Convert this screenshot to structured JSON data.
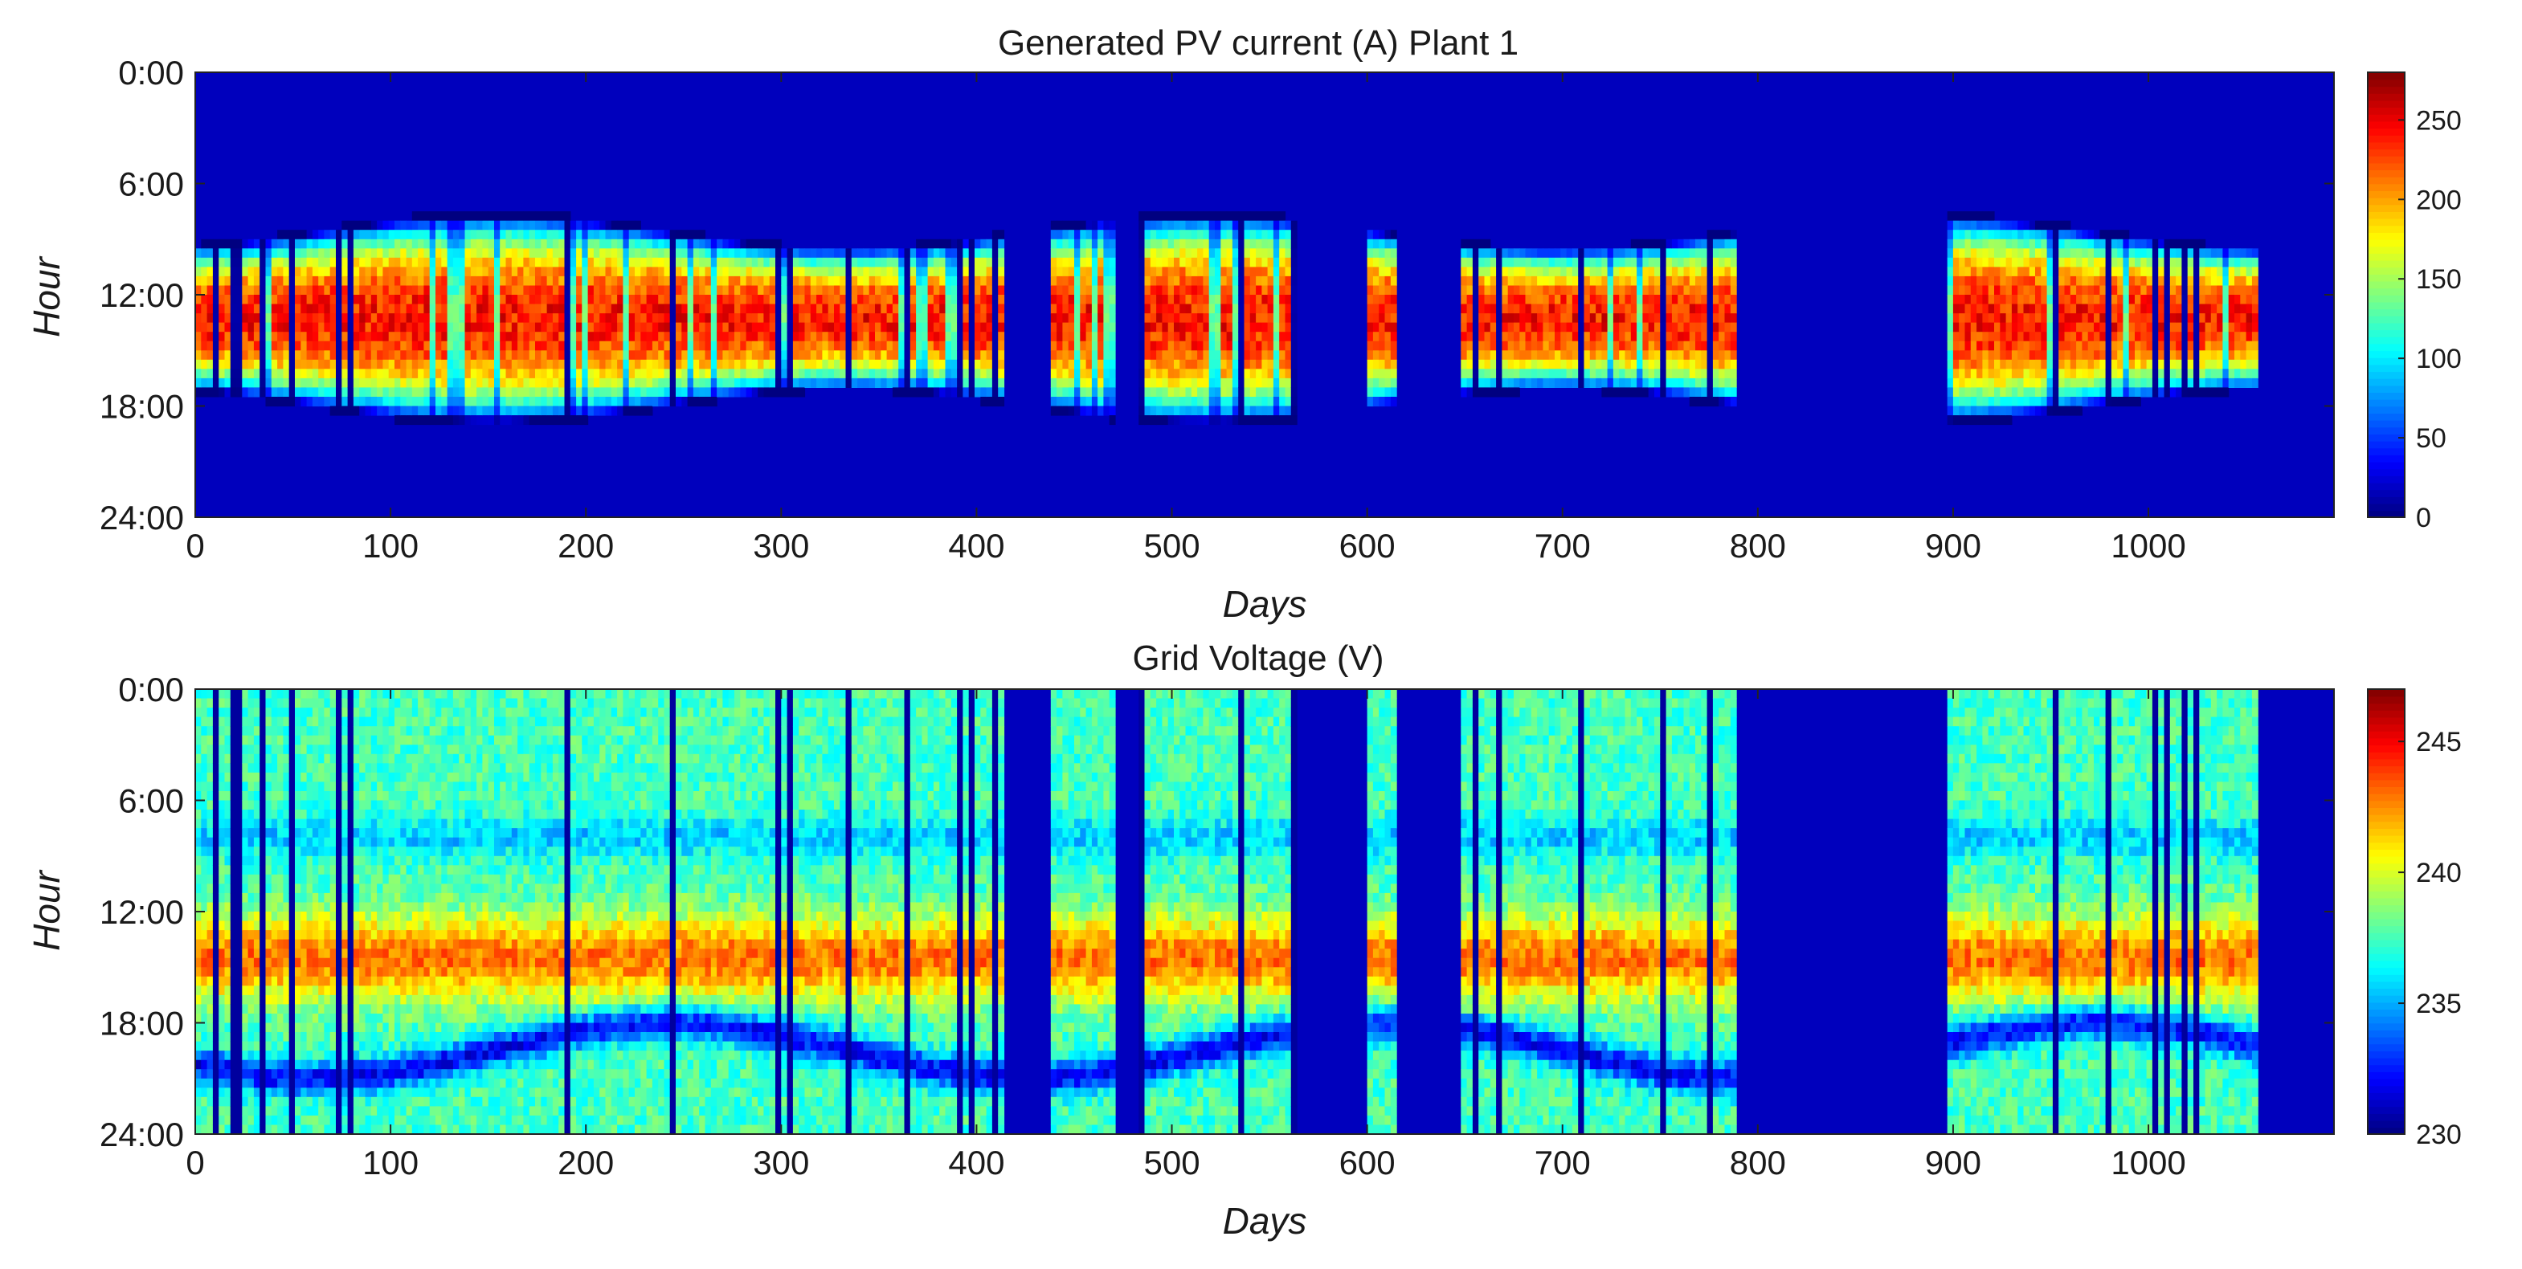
{
  "chart_data": [
    {
      "type": "heatmap",
      "title": "Generated PV current (A) Plant 1",
      "xlabel": "Days",
      "ylabel": "Hour",
      "xlim": [
        0,
        1095
      ],
      "x_ticks": [
        0,
        100,
        200,
        300,
        400,
        500,
        600,
        700,
        800,
        900,
        1000
      ],
      "y_ticks": [
        "0:00",
        "6:00",
        "12:00",
        "18:00",
        "24:00"
      ],
      "y_tick_hours": [
        0,
        6,
        12,
        18,
        24
      ],
      "colorbar": {
        "min": 0,
        "max": 280,
        "ticks": [
          0,
          50,
          100,
          150,
          200,
          250
        ],
        "colormap": "jet"
      },
      "data_segments": [
        [
          0,
          412
        ],
        [
          437,
          470
        ],
        [
          483,
          563
        ],
        [
          598,
          613
        ],
        [
          648,
          787
        ],
        [
          896,
          1055
        ]
      ],
      "no_data_value": 0,
      "profile": {
        "description_hint": "daytime bell around 13:00-14:00",
        "peak_value": 240
      }
    },
    {
      "type": "heatmap",
      "title": "Grid Voltage (V)",
      "xlabel": "Days",
      "ylabel": "Hour",
      "xlim": [
        0,
        1095
      ],
      "x_ticks": [
        0,
        100,
        200,
        300,
        400,
        500,
        600,
        700,
        800,
        900,
        1000
      ],
      "y_ticks": [
        "0:00",
        "6:00",
        "12:00",
        "18:00",
        "24:00"
      ],
      "y_tick_hours": [
        0,
        6,
        12,
        18,
        24
      ],
      "colorbar": {
        "min": 230,
        "max": 247,
        "ticks": [
          230,
          235,
          240,
          245
        ],
        "colormap": "jet"
      },
      "data_segments": [
        [
          0,
          412
        ],
        [
          437,
          470
        ],
        [
          483,
          563
        ],
        [
          598,
          613
        ],
        [
          648,
          787
        ],
        [
          896,
          1055
        ]
      ],
      "no_data_value": 230,
      "profile": {
        "baseline": 237.5,
        "midday_peak": 243,
        "evening_dip": 232
      }
    }
  ],
  "colors": {
    "background": "#ffffff",
    "axis": "#222222",
    "no_data": "#00008f"
  }
}
